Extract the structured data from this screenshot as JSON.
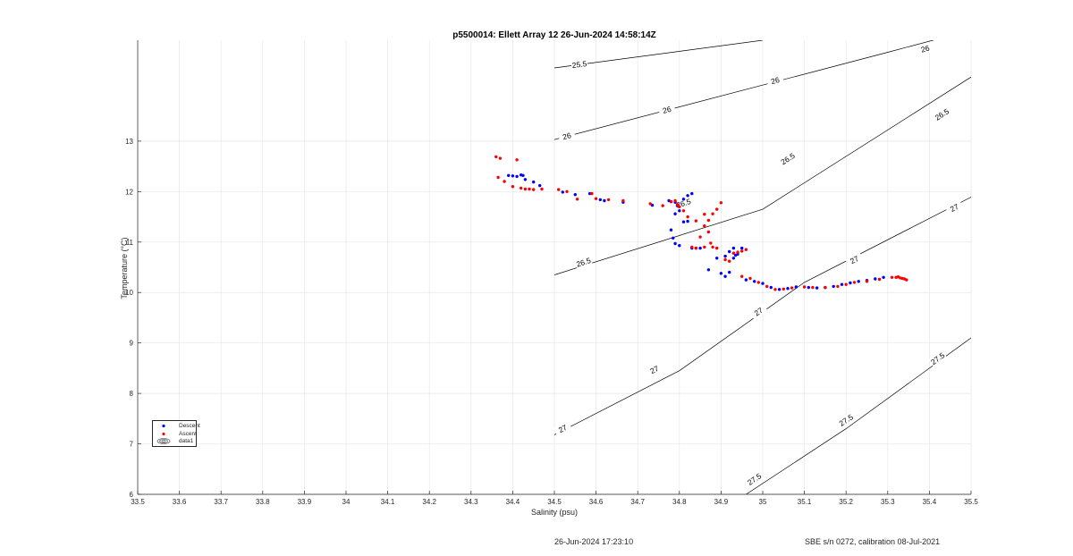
{
  "title": "p5500014: Ellett Array 12 26-Jun-2024 14:58:14Z",
  "footer": {
    "left": "26-Jun-2024 17:23:10",
    "right": "SBE s/n 0272, calibration 08-Jul-2021"
  },
  "legend": {
    "descent": "Descent",
    "ascent": "Ascent",
    "contours": "data1"
  },
  "colors": {
    "descent": "#0000ff",
    "ascent": "#ff0000",
    "contour": "#000000",
    "grid": "#e6e6e6",
    "axis": "#262626"
  },
  "chart_data": {
    "type": "scatter",
    "title": "p5500014: Ellett Array 12 26-Jun-2024 14:58:14Z",
    "xlabel": "Salinity (psu)",
    "ylabel": "Temperature (°C)",
    "xlim": [
      33.5,
      35.5
    ],
    "ylim": [
      6,
      15
    ],
    "xticks": [
      33.5,
      33.6,
      33.7,
      33.8,
      33.9,
      34,
      34.1,
      34.2,
      34.3,
      34.4,
      34.5,
      34.6,
      34.7,
      34.8,
      34.9,
      35,
      35.1,
      35.2,
      35.3,
      35.4,
      35.5
    ],
    "yticks": [
      6,
      7,
      8,
      9,
      10,
      11,
      12,
      13
    ],
    "grid": true,
    "legend_position": "bottom-left",
    "contours": [
      {
        "level": "25.5",
        "points": [
          [
            34.5,
            14.45
          ],
          [
            35.0,
            15.0
          ]
        ],
        "labels": [
          [
            34.56,
            14.52
          ]
        ]
      },
      {
        "level": "26",
        "points": [
          [
            34.5,
            13.03
          ],
          [
            35.3,
            14.76
          ],
          [
            35.5,
            15.2
          ]
        ],
        "labels": [
          [
            34.53,
            13.1
          ],
          [
            34.77,
            13.62
          ],
          [
            35.03,
            14.2
          ],
          [
            35.39,
            14.83
          ]
        ]
      },
      {
        "level": "26.5",
        "points": [
          [
            34.5,
            10.35
          ],
          [
            35.0,
            11.65
          ],
          [
            35.5,
            14.27
          ]
        ],
        "labels": [
          [
            34.57,
            10.6
          ],
          [
            34.81,
            11.77
          ],
          [
            35.06,
            12.65
          ],
          [
            35.43,
            13.53
          ]
        ]
      },
      {
        "level": "27",
        "points": [
          [
            34.5,
            7.18
          ],
          [
            34.8,
            8.45
          ],
          [
            35.1,
            10.2
          ],
          [
            35.5,
            11.89
          ]
        ],
        "labels": [
          [
            34.52,
            7.3
          ],
          [
            34.74,
            8.47
          ],
          [
            34.99,
            9.62
          ],
          [
            35.22,
            10.65
          ],
          [
            35.46,
            11.68
          ]
        ]
      },
      {
        "level": "27.5",
        "points": [
          [
            34.96,
            6.0
          ],
          [
            35.2,
            7.3
          ],
          [
            35.5,
            9.1
          ]
        ],
        "labels": [
          [
            34.98,
            6.3
          ],
          [
            35.2,
            7.47
          ],
          [
            35.42,
            8.69
          ]
        ]
      }
    ],
    "series": [
      {
        "name": "Descent",
        "color": "#0000ff",
        "x": [
          34.39,
          34.4,
          34.41,
          34.42,
          34.425,
          34.43,
          34.45,
          34.465,
          34.52,
          34.55,
          34.585,
          34.61,
          34.62,
          34.665,
          34.735,
          34.775,
          34.78,
          34.79,
          34.795,
          34.8,
          34.81,
          34.82,
          34.83,
          34.79,
          34.78,
          34.785,
          34.79,
          34.8,
          34.81,
          34.82,
          34.83,
          34.84,
          34.85,
          34.87,
          34.89,
          34.91,
          34.92,
          34.93,
          34.935,
          34.94,
          34.95,
          34.93,
          34.92,
          34.91,
          34.9,
          34.96,
          34.98,
          35.0,
          35.02,
          35.04,
          35.06,
          35.08,
          35.11,
          35.13,
          35.15,
          35.17,
          35.19,
          35.21,
          35.23,
          35.25,
          35.27,
          35.29
        ],
        "y": [
          12.32,
          12.31,
          12.3,
          12.33,
          12.32,
          12.24,
          12.19,
          12.12,
          11.99,
          11.94,
          11.96,
          11.84,
          11.82,
          11.79,
          11.73,
          11.82,
          11.8,
          11.79,
          11.72,
          11.62,
          11.85,
          11.92,
          11.96,
          11.56,
          11.24,
          11.08,
          10.97,
          10.93,
          11.4,
          11.41,
          10.88,
          10.88,
          10.88,
          10.45,
          10.68,
          10.72,
          10.81,
          10.88,
          10.74,
          10.76,
          10.88,
          10.68,
          10.4,
          10.32,
          10.38,
          10.25,
          10.22,
          10.18,
          10.1,
          10.06,
          10.08,
          10.11,
          10.1,
          10.09,
          10.1,
          10.12,
          10.16,
          10.19,
          10.22,
          10.24,
          10.27,
          10.3
        ]
      },
      {
        "name": "Ascent",
        "color": "#ff0000",
        "x": [
          34.36,
          34.37,
          34.41,
          34.365,
          34.38,
          34.4,
          34.42,
          34.43,
          34.44,
          34.45,
          34.47,
          34.51,
          34.53,
          34.555,
          34.59,
          34.6,
          34.63,
          34.665,
          34.73,
          34.76,
          34.78,
          34.79,
          34.795,
          34.8,
          34.81,
          34.82,
          34.84,
          34.86,
          34.87,
          34.88,
          34.89,
          34.9,
          34.86,
          34.85,
          34.87,
          34.875,
          34.83,
          34.84,
          34.86,
          34.88,
          34.89,
          34.93,
          34.94,
          34.95,
          34.96,
          34.91,
          34.92,
          34.95,
          34.97,
          34.99,
          35.01,
          35.03,
          35.05,
          35.07,
          35.1,
          35.12,
          35.15,
          35.18,
          35.2,
          35.22,
          35.25,
          35.28,
          35.31,
          35.32,
          35.325,
          35.33,
          35.335,
          35.34,
          35.345
        ],
        "y": [
          12.69,
          12.66,
          12.63,
          12.28,
          12.2,
          12.1,
          12.07,
          12.05,
          12.05,
          12.04,
          12.05,
          12.04,
          12.0,
          11.85,
          11.96,
          11.86,
          11.84,
          11.82,
          11.76,
          11.72,
          11.8,
          11.82,
          11.74,
          11.7,
          11.62,
          11.5,
          11.42,
          11.32,
          11.43,
          11.56,
          11.65,
          11.78,
          11.55,
          11.1,
          11.2,
          10.98,
          10.9,
          10.88,
          10.9,
          10.9,
          10.88,
          10.78,
          10.8,
          10.82,
          10.85,
          10.65,
          10.62,
          10.32,
          10.28,
          10.2,
          10.12,
          10.06,
          10.07,
          10.09,
          10.11,
          10.1,
          10.1,
          10.12,
          10.16,
          10.2,
          10.22,
          10.26,
          10.3,
          10.3,
          10.31,
          10.29,
          10.28,
          10.27,
          10.25
        ]
      }
    ]
  }
}
